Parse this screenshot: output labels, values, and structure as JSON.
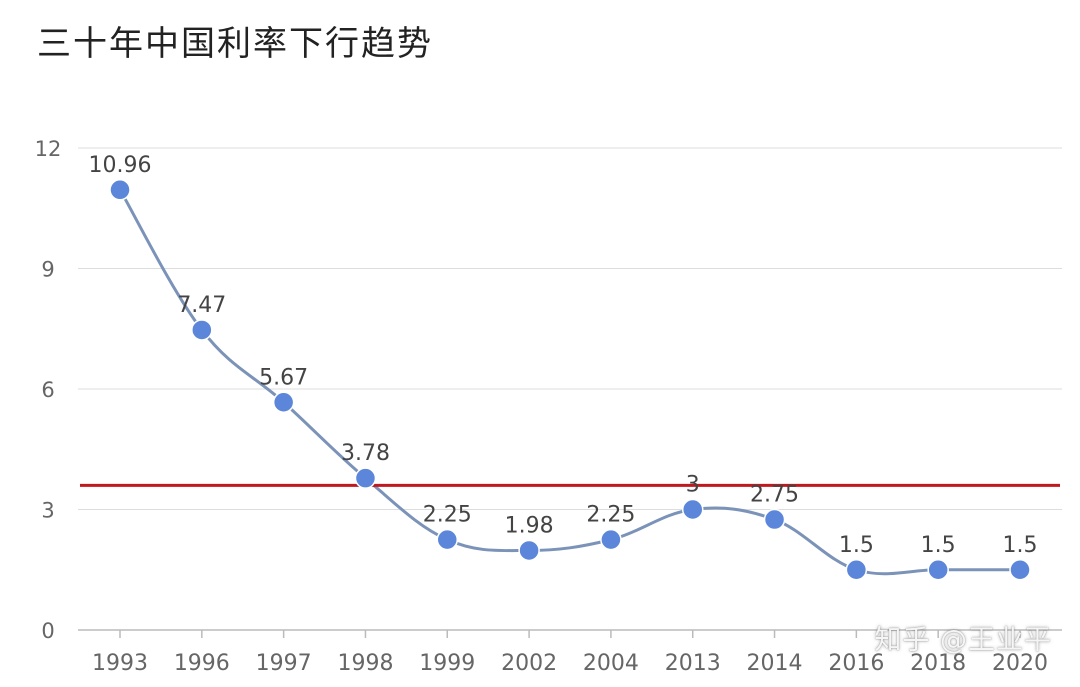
{
  "chart_data": {
    "type": "line",
    "title": "三十年中国利率下行趋势",
    "categories": [
      "1993",
      "1996",
      "1997",
      "1998",
      "1999",
      "2002",
      "2004",
      "2013",
      "2014",
      "2016",
      "2018",
      "2020"
    ],
    "series": [
      {
        "values": [
          10.96,
          7.47,
          5.67,
          3.78,
          2.25,
          1.98,
          2.25,
          3,
          2.75,
          1.5,
          1.5,
          1.5
        ],
        "labels": [
          "10.96",
          "7.47",
          "5.67",
          "3.78",
          "2.25",
          "1.98",
          "2.25",
          "3",
          "2.75",
          "1.5",
          "1.5",
          "1.5"
        ]
      }
    ],
    "yticks": [
      "0",
      "3",
      "6",
      "9",
      "12"
    ],
    "ylim": [
      0,
      12
    ],
    "reference_line": {
      "y": 3.6,
      "color": "#c0181e"
    },
    "grid": true,
    "legend": "none",
    "colors": {
      "line": "#7b93b8",
      "marker": "#5b86d9",
      "grid": "#dddddd",
      "axis": "#bbbbbb"
    }
  },
  "watermark": "知乎 @王业平"
}
